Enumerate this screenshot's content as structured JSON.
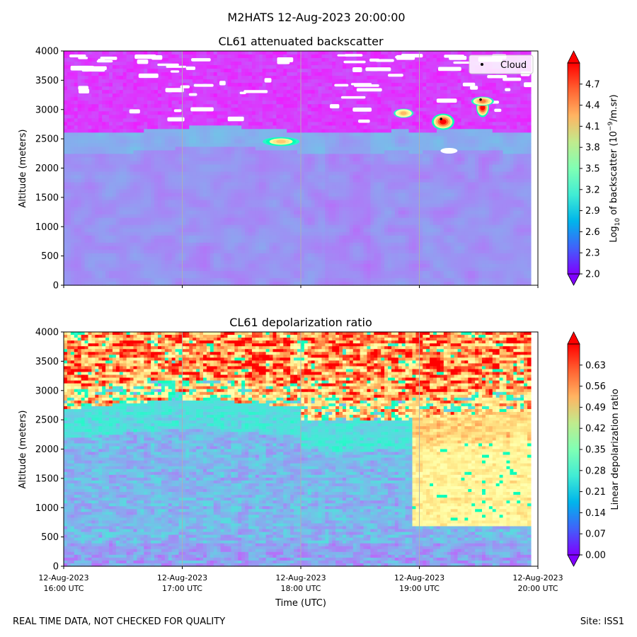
{
  "figure": {
    "suptitle": "M2HATS 12-Aug-2023 20:00:00",
    "footer_left": "REAL TIME DATA, NOT CHECKED FOR QUALITY",
    "footer_right": "Site: ISS1"
  },
  "chart_data": [
    {
      "type": "heatmap",
      "title": "CL61 attenuated backscatter",
      "xlabel": "",
      "ylabel": "Altitude (meters)",
      "ylim": [
        0,
        4000
      ],
      "yticks": [
        0,
        500,
        1000,
        1500,
        2000,
        2500,
        3000,
        3500,
        4000
      ],
      "x_range_utc": [
        "16:00",
        "20:00"
      ],
      "grid": "vertical lines at hourly ticks",
      "legend": {
        "placement": "top-right",
        "entries": [
          "Cloud"
        ]
      },
      "cloud_points": [
        {
          "time_utc": "19:11",
          "altitude_m": 2840
        },
        {
          "time_utc": "19:31",
          "altitude_m": 3170
        }
      ],
      "colorbar": {
        "label": "Log10 of backscatter (10^-9/m.sr)",
        "label_parts": {
          "base": "Log",
          "sub": "10",
          "mid": " of backscatter (10",
          "sup": "−9",
          "end": "/m.sr)"
        },
        "min": 2.0,
        "max": 5.0,
        "ticks": [
          "2.0",
          "2.3",
          "2.6",
          "2.9",
          "3.2",
          "3.5",
          "3.8",
          "4.1",
          "4.4",
          "4.7"
        ],
        "colormap": "rainbow",
        "extend": "both"
      },
      "features": {
        "boundary_layer_top_m": 2650,
        "free_troposphere_log10": 2.1,
        "boundary_layer_log10": 2.6,
        "cloud_core_log10": 5.0
      }
    },
    {
      "type": "heatmap",
      "title": "CL61 depolarization ratio",
      "xlabel": "Time (UTC)",
      "ylabel": "Altitude (meters)",
      "ylim": [
        0,
        4000
      ],
      "yticks": [
        0,
        500,
        1000,
        1500,
        2000,
        2500,
        3000,
        3500,
        4000
      ],
      "xticks": [
        {
          "date": "12-Aug-2023",
          "time": "16:00 UTC"
        },
        {
          "date": "12-Aug-2023",
          "time": "17:00 UTC"
        },
        {
          "date": "12-Aug-2023",
          "time": "18:00 UTC"
        },
        {
          "date": "12-Aug-2023",
          "time": "19:00 UTC"
        },
        {
          "date": "12-Aug-2023",
          "time": "20:00 UTC"
        }
      ],
      "grid": "vertical lines at hourly ticks",
      "colorbar": {
        "label": "Linear depolarization ratio",
        "min": 0.0,
        "max": 0.7,
        "ticks": [
          "0.00",
          "0.07",
          "0.14",
          "0.21",
          "0.28",
          "0.35",
          "0.42",
          "0.49",
          "0.56",
          "0.63"
        ],
        "colormap": "rainbow",
        "extend": "both"
      },
      "features": {
        "boundary_layer_top_m": 2750,
        "free_troposphere_ratio": 0.5,
        "boundary_layer_ratio": 0.12
      }
    }
  ]
}
